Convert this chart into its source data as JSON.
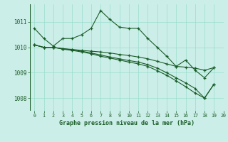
{
  "title": "Graphe pression niveau de la mer (hPa)",
  "background_color": "#cceee8",
  "grid_color": "#99ddcc",
  "line_color": "#1a5c28",
  "xlim": [
    -0.5,
    20
  ],
  "ylim": [
    1007.5,
    1011.7
  ],
  "yticks": [
    1008,
    1009,
    1010,
    1011
  ],
  "xticks": [
    0,
    1,
    2,
    3,
    4,
    5,
    6,
    7,
    8,
    9,
    10,
    11,
    12,
    13,
    14,
    15,
    16,
    17,
    18,
    19,
    20
  ],
  "series": [
    {
      "x": [
        0,
        1,
        2,
        3,
        4,
        5,
        6,
        7,
        8,
        9,
        10,
        11,
        12,
        13,
        14,
        15,
        16,
        17,
        18,
        19
      ],
      "y": [
        1010.75,
        1010.35,
        1010.05,
        1010.35,
        1010.35,
        1010.5,
        1010.75,
        1011.45,
        1011.1,
        1010.8,
        1010.75,
        1010.75,
        1010.35,
        1010.0,
        1009.65,
        1009.25,
        1009.5,
        1009.1,
        1008.8,
        1009.2
      ]
    },
    {
      "x": [
        0,
        1,
        2,
        3,
        4,
        5,
        6,
        7,
        8,
        9,
        10,
        11,
        12,
        13,
        14,
        15,
        16,
        17,
        18,
        19
      ],
      "y": [
        1010.1,
        1010.0,
        1010.0,
        1009.95,
        1009.92,
        1009.88,
        1009.85,
        1009.82,
        1009.78,
        1009.72,
        1009.68,
        1009.62,
        1009.55,
        1009.45,
        1009.35,
        1009.25,
        1009.22,
        1009.18,
        1009.1,
        1009.2
      ]
    },
    {
      "x": [
        0,
        1,
        2,
        3,
        4,
        5,
        6,
        7,
        8,
        9,
        10,
        11,
        12,
        13,
        14,
        15,
        16,
        17,
        18,
        19
      ],
      "y": [
        1010.1,
        1010.0,
        1010.0,
        1009.95,
        1009.9,
        1009.85,
        1009.78,
        1009.7,
        1009.62,
        1009.55,
        1009.48,
        1009.42,
        1009.32,
        1009.18,
        1009.0,
        1008.8,
        1008.6,
        1008.38,
        1008.0,
        1008.55
      ]
    },
    {
      "x": [
        0,
        1,
        2,
        3,
        4,
        5,
        6,
        7,
        8,
        9,
        10,
        11,
        12,
        13,
        14,
        15,
        16,
        17,
        18,
        19
      ],
      "y": [
        1010.1,
        1010.0,
        1010.0,
        1009.93,
        1009.88,
        1009.82,
        1009.75,
        1009.65,
        1009.58,
        1009.5,
        1009.42,
        1009.35,
        1009.25,
        1009.08,
        1008.9,
        1008.68,
        1008.45,
        1008.2,
        1008.0,
        1008.55
      ]
    }
  ]
}
